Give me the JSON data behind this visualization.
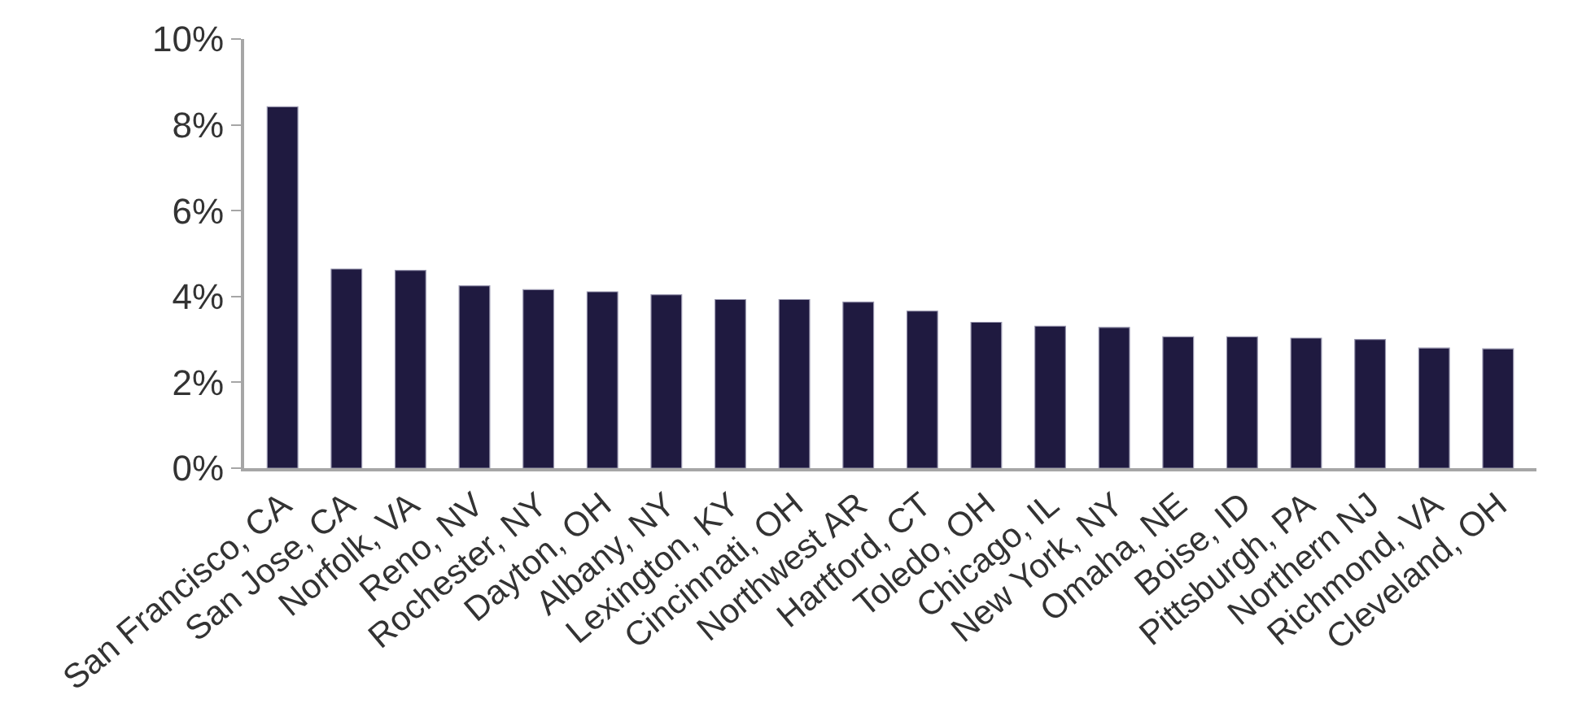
{
  "chart_data": {
    "type": "bar",
    "categories": [
      "San Francisco, CA",
      "San Jose, CA",
      "Norfolk, VA",
      "Reno, NV",
      "Rochester, NY",
      "Dayton, OH",
      "Albany, NY",
      "Lexington, KY",
      "Cincinnati, OH",
      "Northwest AR",
      "Hartford, CT",
      "Toledo, OH",
      "Chicago, IL",
      "New York, NY",
      "Omaha, NE",
      "Boise, ID",
      "Pittsburgh, PA",
      "Northern NJ",
      "Richmond, VA",
      "Cleveland, OH"
    ],
    "values": [
      8.42,
      4.64,
      4.61,
      4.25,
      4.16,
      4.11,
      4.04,
      3.93,
      3.93,
      3.87,
      3.66,
      3.4,
      3.31,
      3.28,
      3.06,
      3.06,
      3.03,
      3.0,
      2.8,
      2.78
    ],
    "color": "#1f1a40",
    "ylim": [
      0,
      10
    ],
    "yticks": [
      {
        "value": 0,
        "label": "0%"
      },
      {
        "value": 2,
        "label": "2%"
      },
      {
        "value": 4,
        "label": "4%"
      },
      {
        "value": 6,
        "label": "6%"
      },
      {
        "value": 8,
        "label": "8%"
      },
      {
        "value": 10,
        "label": "10%"
      }
    ],
    "legend": false
  }
}
